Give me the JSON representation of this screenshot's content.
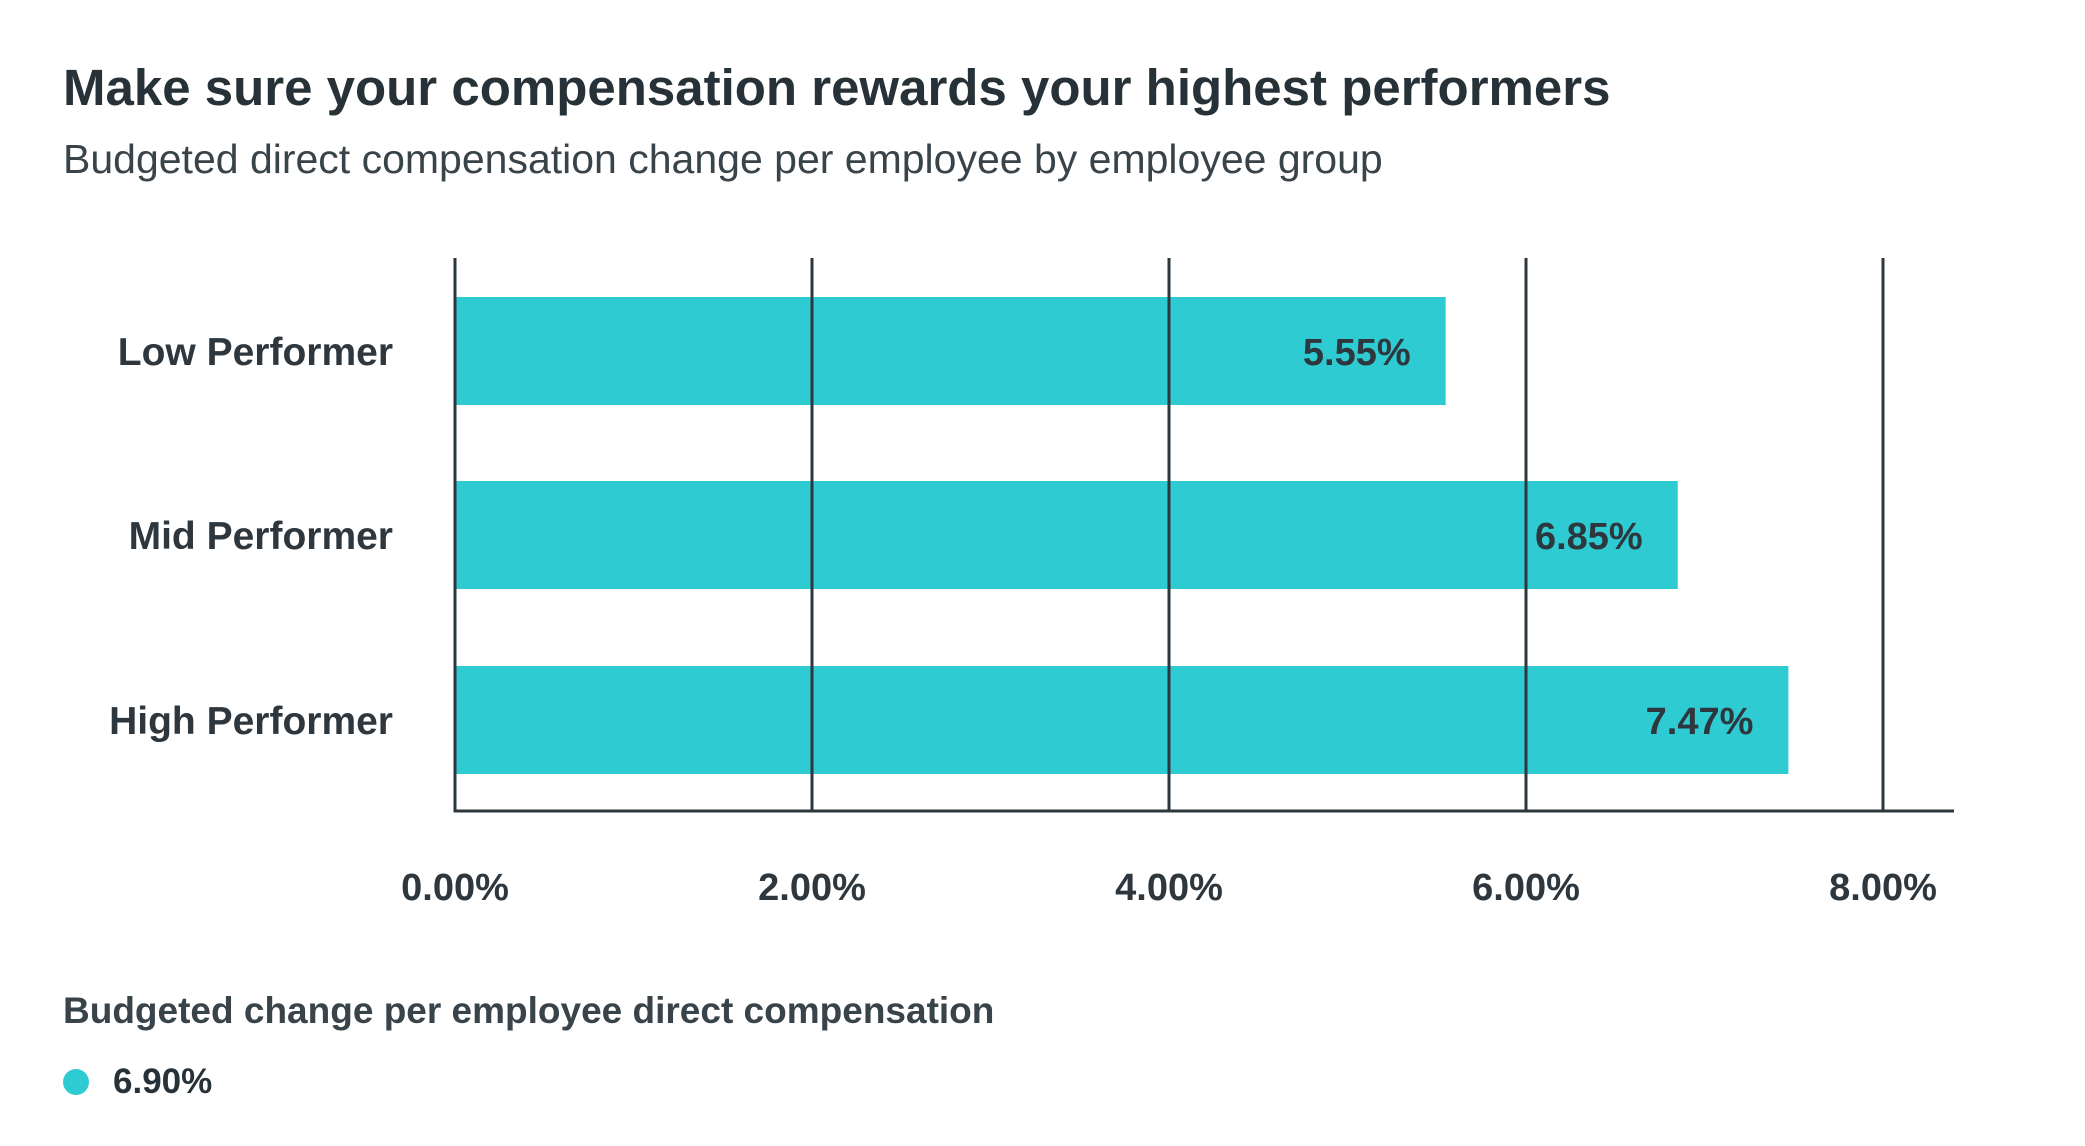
{
  "title": "Make sure your compensation rewards your highest performers",
  "subtitle": "Budgeted direct compensation change per employee by employee group",
  "legend": {
    "title": "Budgeted change per employee direct compensation",
    "items": [
      {
        "label": "6.90%",
        "color": "#2ecbd2"
      }
    ]
  },
  "chart_data": {
    "type": "bar",
    "orientation": "horizontal",
    "categories": [
      "Low Performer",
      "Mid Performer",
      "High Performer"
    ],
    "values": [
      5.55,
      6.85,
      7.47
    ],
    "data_labels": [
      "5.55%",
      "6.85%",
      "7.47%"
    ],
    "x_ticks": [
      0,
      2,
      4,
      6,
      8
    ],
    "x_tick_labels": [
      "0.00%",
      "2.00%",
      "4.00%",
      "6.00%",
      "8.00%"
    ],
    "xlim": [
      0,
      8.5
    ],
    "grid": true,
    "bar_color": "#2ecbd2",
    "title": "Make sure your compensation rewards your highest performers",
    "xlabel": "",
    "ylabel": ""
  }
}
